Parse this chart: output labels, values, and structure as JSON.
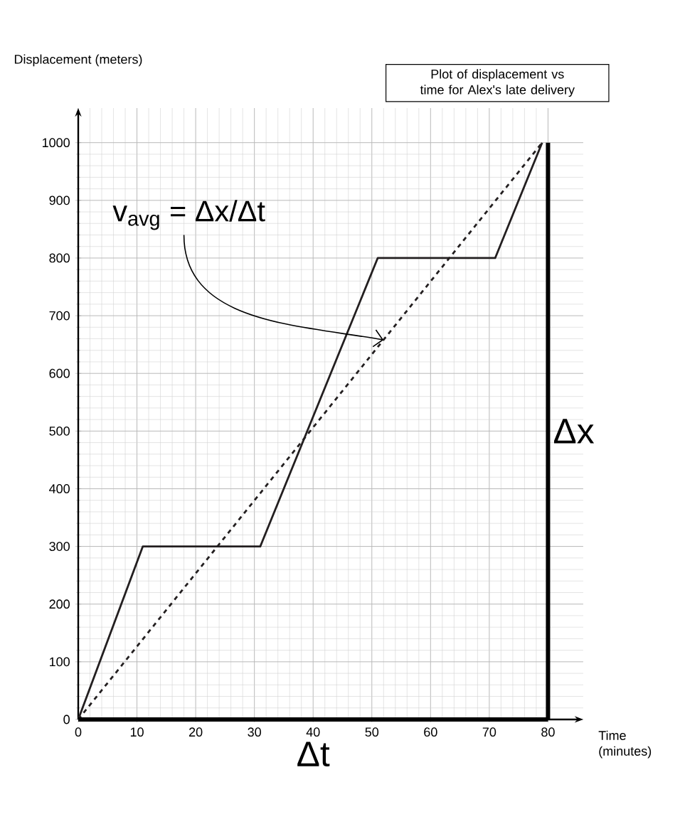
{
  "chart_data": {
    "type": "line",
    "title": "Plot of displacement vs time for Alex's late delivery",
    "xlabel": "Time (minutes)",
    "ylabel": "Displacement (meters)",
    "xlim": [
      0,
      86
    ],
    "ylim": [
      0,
      1060
    ],
    "xticks": [
      0,
      10,
      20,
      30,
      40,
      50,
      60,
      70,
      80
    ],
    "yticks": [
      0,
      100,
      200,
      300,
      400,
      500,
      600,
      700,
      800,
      900,
      1000
    ],
    "grid": true,
    "marker": "none",
    "series": [
      {
        "x": [
          0,
          11,
          31,
          51,
          71,
          79
        ],
        "values": [
          0,
          300,
          300,
          800,
          800,
          1000
        ],
        "color": "#231f20",
        "line_style": "solid"
      },
      {
        "x": [
          0,
          79
        ],
        "values": [
          0,
          1000
        ],
        "color": "#231f20",
        "line_style": "dashed"
      }
    ],
    "ref_lines": [
      {
        "axis": "x",
        "value": 80,
        "label": "Δx",
        "color": "#000000"
      },
      {
        "axis": "y",
        "value": 0,
        "label": "Δt",
        "color": "#000000"
      }
    ],
    "annotations": [
      {
        "text": "v$_{avg}$ = Δx/Δt",
        "x": 52,
        "y": 658
      }
    ]
  }
}
